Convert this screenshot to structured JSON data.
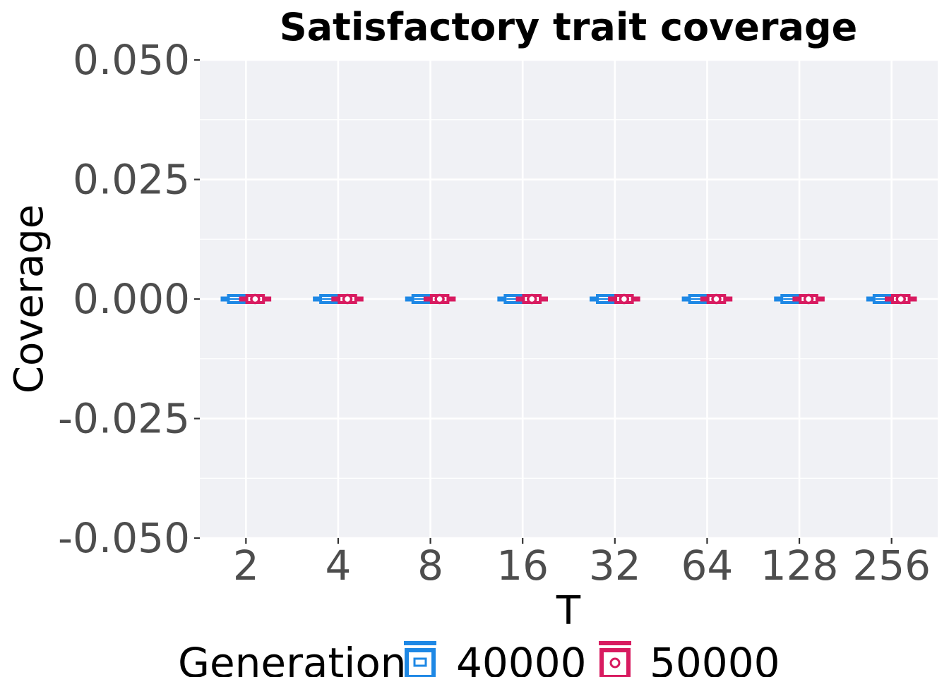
{
  "chart_data": {
    "type": "box",
    "title": "Satisfactory trait coverage",
    "xlabel": "T",
    "ylabel": "Coverage",
    "categories": [
      "2",
      "4",
      "8",
      "16",
      "32",
      "64",
      "128",
      "256"
    ],
    "y_ticks": [
      "0.050",
      "0.025",
      "0.000",
      "-0.025",
      "-0.050"
    ],
    "ylim": [
      -0.05,
      0.05
    ],
    "grid": true,
    "legend": {
      "title": "Generation",
      "position": "bottom"
    },
    "series": [
      {
        "name": "40000",
        "color": "#1e88e5",
        "values": [
          0,
          0,
          0,
          0,
          0,
          0,
          0,
          0
        ]
      },
      {
        "name": "50000",
        "color": "#d81b60",
        "values": [
          0,
          0,
          0,
          0,
          0,
          0,
          0,
          0
        ]
      }
    ]
  }
}
